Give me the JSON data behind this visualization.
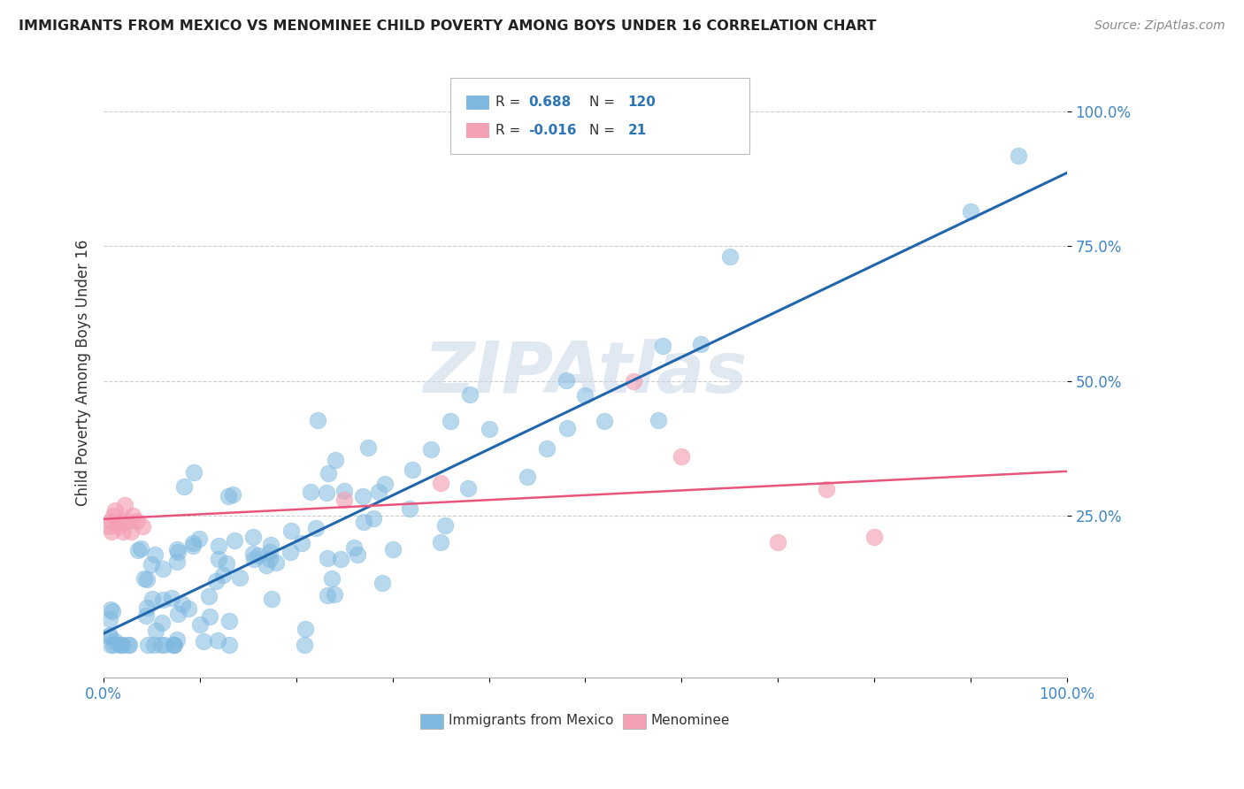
{
  "title": "IMMIGRANTS FROM MEXICO VS MENOMINEE CHILD POVERTY AMONG BOYS UNDER 16 CORRELATION CHART",
  "source": "Source: ZipAtlas.com",
  "ylabel": "Child Poverty Among Boys Under 16",
  "blue_R": 0.688,
  "blue_N": 120,
  "pink_R": -0.016,
  "pink_N": 21,
  "blue_color": "#7fb9e0",
  "pink_color": "#f4a0b5",
  "blue_line_color": "#2166ac",
  "pink_line_color": "#e8547a",
  "xlim": [
    0.0,
    1.0
  ],
  "ylim": [
    -0.05,
    1.08
  ],
  "yticks": [
    0.25,
    0.5,
    0.75,
    1.0
  ],
  "ytick_labels": [
    "25.0%",
    "50.0%",
    "75.0%",
    "100.0%"
  ],
  "background_color": "#ffffff",
  "grid_color": "#cccccc",
  "watermark": "ZIPAtlas",
  "legend_blue_text": "Immigrants from Mexico",
  "legend_pink_text": "Menominee"
}
